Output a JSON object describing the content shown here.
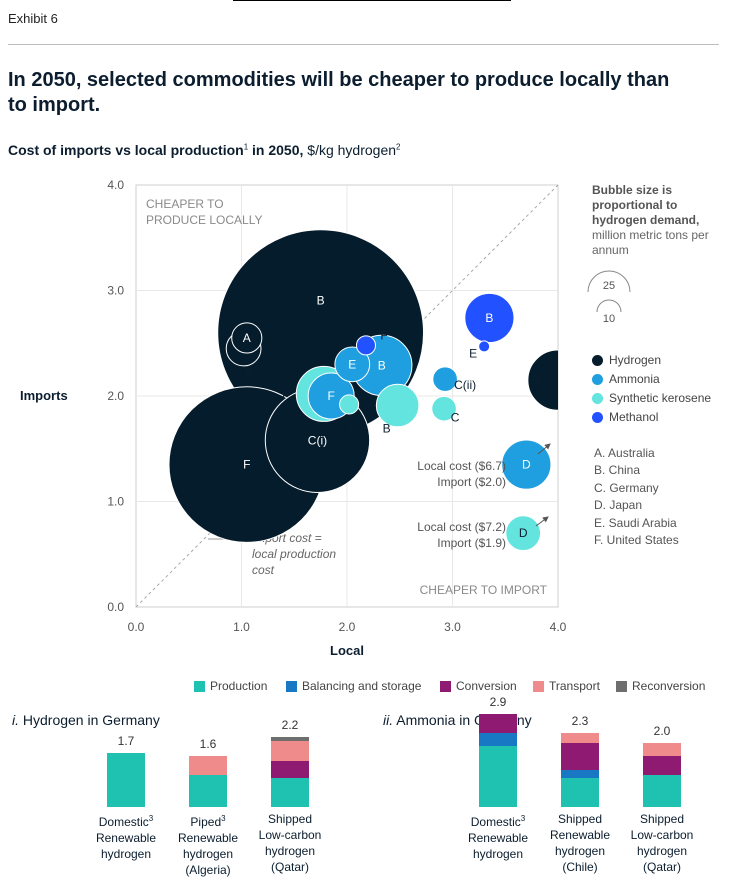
{
  "exhibit": "Exhibit 6",
  "title": "In 2050, selected commodities will be cheaper to produce locally than to import.",
  "subtitle": {
    "bold": "Cost of imports vs local production",
    "sup1": "1",
    "rest": " in 2050,",
    "unit": " $/kg hydrogen",
    "sup2": "2"
  },
  "colors": {
    "hydrogen": "#051c2c",
    "ammonia": "#1f9fdf",
    "kerosene": "#63e4df",
    "methanol": "#2251ff",
    "production": "#1fc1b0",
    "balancing": "#1878c4",
    "conversion": "#8e1a72",
    "transport": "#f08b8b",
    "reconversion": "#6e6e6e"
  },
  "chart_data": [
    {
      "type": "scatter",
      "title": "Cost of imports vs local production in 2050, $/kg hydrogen",
      "xlabel": "Local",
      "ylabel": "Imports",
      "xlim": [
        0,
        4
      ],
      "ylim": [
        0,
        4
      ],
      "xticks": [
        "0.0",
        "1.0",
        "2.0",
        "3.0",
        "4.0"
      ],
      "yticks": [
        "0.0",
        "1.0",
        "2.0",
        "3.0",
        "4.0"
      ],
      "diagonal_label": "Import cost = local production cost",
      "region_labels": {
        "upper_left": "CHEAPER TO PRODUCE LOCALLY",
        "lower_right": "CHEAPER TO IMPORT"
      },
      "bubble_size_note": {
        "bold": "Bubble size is proportional to hydrogen demand,",
        "normal": "million metric tons per annum",
        "reference_values": [
          "25",
          "10"
        ]
      },
      "series": [
        {
          "name": "Hydrogen",
          "color": "#051c2c",
          "points": [
            {
              "label": "A",
              "x": 1.05,
              "y": 2.55,
              "size": 1.5
            },
            {
              "label": "E",
              "x": 1.02,
              "y": 2.45,
              "size": 2
            },
            {
              "label": "B",
              "x": 1.75,
              "y": 2.6,
              "size": 70
            },
            {
              "label": "C(i)",
              "x": 1.72,
              "y": 1.58,
              "size": 18
            },
            {
              "label": "F",
              "x": 1.05,
              "y": 1.35,
              "size": 40
            },
            {
              "label": "D",
              "x": 4.0,
              "y": 2.15,
              "size": 6
            }
          ]
        },
        {
          "name": "Ammonia",
          "color": "#1f9fdf",
          "points": [
            {
              "label": "E",
              "x": 2.05,
              "y": 2.3,
              "size": 2
            },
            {
              "label": "B",
              "x": 2.33,
              "y": 2.29,
              "size": 6
            },
            {
              "label": "F",
              "x": 1.85,
              "y": 2.0,
              "size": 3.5
            },
            {
              "label": "C(ii)",
              "x": 2.93,
              "y": 2.16,
              "size": 1
            },
            {
              "label": "D",
              "x": 3.7,
              "y": 1.35,
              "size": 4
            }
          ]
        },
        {
          "name": "Synthetic kerosene",
          "color": "#63e4df",
          "points": [
            {
              "label": "F",
              "x": 1.78,
              "y": 2.02,
              "size": 5
            },
            {
              "label": "A",
              "x": 2.02,
              "y": 1.92,
              "size": 0.6
            },
            {
              "label": "B",
              "x": 2.48,
              "y": 1.91,
              "size": 3
            },
            {
              "label": "C",
              "x": 2.92,
              "y": 1.88,
              "size": 1
            },
            {
              "label": "D",
              "x": 3.67,
              "y": 0.7,
              "size": 2
            }
          ]
        },
        {
          "name": "Methanol",
          "color": "#2251ff",
          "points": [
            {
              "label": "F",
              "x": 2.18,
              "y": 2.48,
              "size": 0.6
            },
            {
              "label": "B",
              "x": 3.35,
              "y": 2.74,
              "size": 4
            },
            {
              "label": "E",
              "x": 3.3,
              "y": 2.47,
              "size": 0.2
            }
          ]
        }
      ],
      "annotations": [
        {
          "text": "Local cost ($6.7)",
          "text2": "Import ($2.0)"
        },
        {
          "text": "Local cost ($7.2)",
          "text2": "Import ($1.9)"
        }
      ]
    },
    {
      "type": "bar",
      "stacked": true,
      "title": "i. Hydrogen in Germany",
      "categories": [
        {
          "line1": "Domestic",
          "sup": "3",
          "line2": "Renewable",
          "line3": "hydrogen",
          "line4": ""
        },
        {
          "line1": "Piped",
          "sup": "3",
          "line2": "Renewable",
          "line3": "hydrogen",
          "line4": "(Algeria)"
        },
        {
          "line1": "Shipped",
          "sup": "",
          "line2": "Low-carbon",
          "line3": "hydrogen",
          "line4": "(Qatar)"
        }
      ],
      "totals": [
        "1.7",
        "1.6",
        "2.2"
      ],
      "series": [
        {
          "name": "Production",
          "values": [
            1.7,
            1.0,
            0.9
          ]
        },
        {
          "name": "Balancing and storage",
          "values": [
            0,
            0,
            0
          ]
        },
        {
          "name": "Conversion",
          "values": [
            0,
            0,
            0.55
          ]
        },
        {
          "name": "Transport",
          "values": [
            0,
            0.6,
            0.6
          ]
        },
        {
          "name": "Reconversion",
          "values": [
            0,
            0,
            0.15
          ]
        }
      ]
    },
    {
      "type": "bar",
      "stacked": true,
      "title": "ii. Ammonia in Germany",
      "categories": [
        {
          "line1": "Domestic",
          "sup": "3",
          "line2": "Renewable",
          "line3": "hydrogen",
          "line4": ""
        },
        {
          "line1": "Shipped",
          "sup": "",
          "line2": "Renewable",
          "line3": "hydrogen",
          "line4": "(Chile)"
        },
        {
          "line1": "Shipped",
          "sup": "",
          "line2": "Low-carbon",
          "line3": "hydrogen",
          "line4": "(Qatar)"
        }
      ],
      "totals": [
        "2.9",
        "2.3",
        "2.0"
      ],
      "series": [
        {
          "name": "Production",
          "values": [
            1.9,
            0.9,
            1.0
          ]
        },
        {
          "name": "Balancing and storage",
          "values": [
            0.4,
            0.25,
            0
          ]
        },
        {
          "name": "Conversion",
          "values": [
            0.6,
            0.85,
            0.6
          ]
        },
        {
          "name": "Transport",
          "values": [
            0,
            0.3,
            0.4
          ]
        },
        {
          "name": "Reconversion",
          "values": [
            0,
            0,
            0
          ]
        }
      ]
    }
  ],
  "legend_series": [
    "Hydrogen",
    "Ammonia",
    "Synthetic kerosene",
    "Methanol"
  ],
  "countries": [
    "A. Australia",
    "B. China",
    "C. Germany",
    "D. Japan",
    "E. Saudi Arabia",
    "F. United States"
  ],
  "cost_legend": [
    "Production",
    "Balancing and storage",
    "Conversion",
    "Transport",
    "Reconversion"
  ],
  "section_titles": {
    "hydrogen_prefix": "i.",
    "hydrogen_rest": " Hydrogen in Germany",
    "ammonia_prefix": "ii.",
    "ammonia_rest": " Ammonia in Germany"
  }
}
